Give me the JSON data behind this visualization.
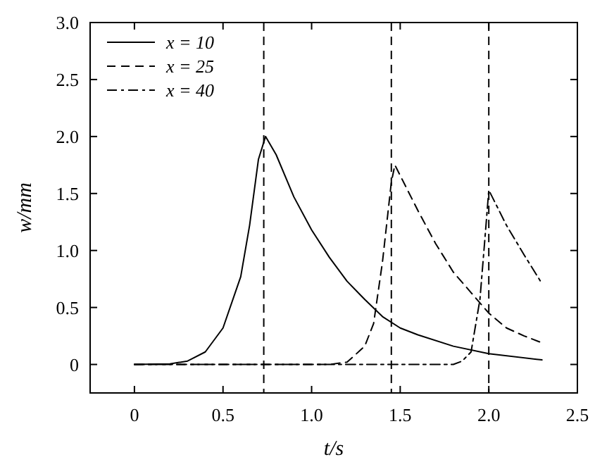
{
  "chart_data": {
    "type": "line",
    "xlabel": "t/s",
    "ylabel": "w/mm",
    "xlim": [
      -0.25,
      2.5
    ],
    "ylim": [
      -0.25,
      3
    ],
    "xticks": [
      0,
      0.5,
      {
        "value": 1,
        "label": "1.0"
      },
      1.5,
      {
        "value": 2,
        "label": "2.0"
      },
      2.5
    ],
    "yticks": [
      0,
      0.5,
      {
        "value": 1,
        "label": "1.0"
      },
      1.5,
      {
        "value": 2,
        "label": "2.0"
      },
      2.5,
      {
        "value": 3,
        "label": "3.0"
      }
    ],
    "legend": "top left",
    "grid": false,
    "marker": "none",
    "series": [
      {
        "name": "x = 10",
        "color": "#000000",
        "line_style": "solid",
        "x": [
          0,
          0.2,
          0.3,
          0.4,
          0.5,
          0.6,
          0.65,
          0.7,
          0.74,
          0.8,
          0.9,
          1.0,
          1.1,
          1.2,
          1.3,
          1.4,
          1.5,
          1.6,
          1.8,
          2.0,
          2.3
        ],
        "values": [
          0,
          0.005,
          0.03,
          0.11,
          0.32,
          0.77,
          1.22,
          1.8,
          2.0,
          1.84,
          1.47,
          1.18,
          0.94,
          0.73,
          0.57,
          0.42,
          0.32,
          0.26,
          0.16,
          0.095,
          0.04
        ]
      },
      {
        "name": "x = 25",
        "color": "#000000",
        "line_style": "dashed",
        "x": [
          0,
          1.1,
          1.2,
          1.3,
          1.35,
          1.4,
          1.45,
          1.47,
          1.6,
          1.7,
          1.8,
          1.9,
          2.0,
          2.1,
          2.2,
          2.3
        ],
        "values": [
          0,
          0,
          0.02,
          0.16,
          0.36,
          0.9,
          1.6,
          1.75,
          1.35,
          1.06,
          0.81,
          0.63,
          0.45,
          0.32,
          0.25,
          0.19
        ]
      },
      {
        "name": "x = 40",
        "color": "#000000",
        "line_style": "dashdot",
        "x": [
          0,
          1.8,
          1.85,
          1.9,
          1.95,
          1.98,
          2.0,
          2.1,
          2.2,
          2.3
        ],
        "values": [
          0,
          0,
          0.03,
          0.11,
          0.57,
          1.14,
          1.53,
          1.22,
          0.96,
          0.71
        ]
      }
    ],
    "ref_lines": [
      {
        "axis": "x",
        "value": 0.73,
        "line_style": "dashed"
      },
      {
        "axis": "x",
        "value": 1.45,
        "line_style": "dashed"
      },
      {
        "axis": "x",
        "value": 2.0,
        "line_style": "dashed"
      }
    ]
  }
}
